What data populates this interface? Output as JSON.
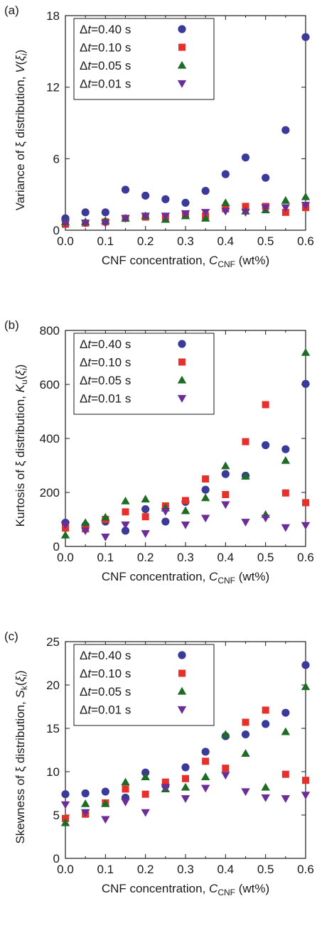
{
  "colors": {
    "dt_040": "#3a3a9a",
    "dt_010": "#e8302a",
    "dt_005": "#1d6b24",
    "dt_001": "#6b2d96"
  },
  "markers": {
    "dt_040": "circle",
    "dt_010": "square",
    "dt_005": "triangle-up",
    "dt_001": "triangle-down"
  },
  "chart_data": [
    {
      "type": "scatter",
      "panel_label": "(a)",
      "xlabel": "CNF concentration, C_CNF (wt%)",
      "xlabel_parts": {
        "pre": "CNF concentration, ",
        "sym": "C",
        "sub": "CNF",
        "post": " (wt%)"
      },
      "ylabel": "Variance of ξ distribution, V(ξi)",
      "ylabel_parts": {
        "pre": "Variance of ξ distribution, ",
        "sym": "V",
        "open": "(",
        "xi": "ξ",
        "sub": "i",
        "close": ")"
      },
      "xlim": [
        0,
        0.6
      ],
      "ylim": [
        0,
        18
      ],
      "xticks": [
        "0.0",
        "0.1",
        "0.2",
        "0.3",
        "0.4",
        "0.5",
        "0.6"
      ],
      "yticks": [
        "0",
        "6",
        "12",
        "18"
      ],
      "x": [
        0.0,
        0.05,
        0.1,
        0.15,
        0.2,
        0.25,
        0.3,
        0.35,
        0.4,
        0.45,
        0.5,
        0.55,
        0.6
      ],
      "series": [
        {
          "name": "Δt=0.40 s",
          "key": "dt_040",
          "values": [
            1.0,
            1.5,
            1.5,
            3.4,
            2.9,
            2.6,
            2.3,
            3.3,
            4.7,
            6.1,
            4.4,
            8.4,
            16.2
          ]
        },
        {
          "name": "Δt=0.10 s",
          "key": "dt_010",
          "values": [
            0.5,
            0.6,
            0.7,
            1.0,
            1.1,
            1.1,
            1.3,
            1.2,
            1.8,
            2.0,
            2.0,
            1.5,
            1.9
          ]
        },
        {
          "name": "Δt=0.05 s",
          "key": "dt_005",
          "values": [
            0.7,
            0.7,
            0.8,
            1.0,
            1.2,
            0.9,
            1.2,
            1.0,
            2.3,
            1.6,
            1.7,
            2.5,
            2.8
          ]
        },
        {
          "name": "Δt=0.01 s",
          "key": "dt_001",
          "values": [
            0.6,
            0.6,
            0.6,
            1.0,
            1.2,
            1.2,
            1.4,
            1.5,
            1.6,
            1.5,
            1.9,
            1.9,
            2.1
          ]
        }
      ]
    },
    {
      "type": "scatter",
      "panel_label": "(b)",
      "xlabel": "CNF concentration, C_CNF (wt%)",
      "xlabel_parts": {
        "pre": "CNF concentration, ",
        "sym": "C",
        "sub": "CNF",
        "post": " (wt%)"
      },
      "ylabel": "Kurtosis of ξ distribution, Ku(ξi)",
      "ylabel_parts": {
        "pre": "Kurtosis of ξ distribution, ",
        "sym": "K",
        "symsub": "u",
        "open": "(",
        "xi": "ξ",
        "sub": "i",
        "close": ")"
      },
      "xlim": [
        0,
        0.6
      ],
      "ylim": [
        0,
        800
      ],
      "xticks": [
        "0.0",
        "0.1",
        "0.2",
        "0.3",
        "0.4",
        "0.5",
        "0.6"
      ],
      "yticks": [
        "0",
        "200",
        "400",
        "600",
        "800"
      ],
      "x": [
        0.0,
        0.05,
        0.1,
        0.15,
        0.2,
        0.25,
        0.3,
        0.35,
        0.4,
        0.45,
        0.5,
        0.55,
        0.6
      ],
      "series": [
        {
          "name": "Δt=0.40 s",
          "key": "dt_040",
          "values": [
            88,
            78,
            92,
            58,
            138,
            92,
            165,
            210,
            268,
            262,
            375,
            360,
            602
          ]
        },
        {
          "name": "Δt=0.10 s",
          "key": "dt_010",
          "values": [
            68,
            65,
            100,
            128,
            110,
            150,
            170,
            250,
            192,
            388,
            525,
            198,
            162
          ]
        },
        {
          "name": "Δt=0.05 s",
          "key": "dt_005",
          "values": [
            42,
            88,
            108,
            168,
            175,
            142,
            132,
            180,
            298,
            260,
            118,
            318,
            718
          ]
        },
        {
          "name": "Δt=0.01 s",
          "key": "dt_001",
          "values": [
            80,
            58,
            35,
            80,
            48,
            130,
            80,
            105,
            155,
            90,
            105,
            70,
            78
          ]
        }
      ]
    },
    {
      "type": "scatter",
      "panel_label": "(c)",
      "xlabel": "CNF concentration, C_CNF (wt%)",
      "xlabel_parts": {
        "pre": "CNF concentration, ",
        "sym": "C",
        "sub": "CNF",
        "post": " (wt%)"
      },
      "ylabel": "Skewness of ξ distribution, Sk(ξi)",
      "ylabel_parts": {
        "pre": "Skewness of ξ distribution, ",
        "sym": "S",
        "symsub": "k",
        "open": "(",
        "xi": "ξ",
        "sub": "i",
        "close": ")"
      },
      "xlim": [
        0,
        0.6
      ],
      "ylim": [
        0,
        25
      ],
      "xticks": [
        "0.0",
        "0.1",
        "0.2",
        "0.3",
        "0.4",
        "0.5",
        "0.6"
      ],
      "yticks": [
        "0",
        "5",
        "10",
        "15",
        "20",
        "25"
      ],
      "x": [
        0.0,
        0.05,
        0.1,
        0.15,
        0.2,
        0.25,
        0.3,
        0.35,
        0.4,
        0.45,
        0.5,
        0.55,
        0.6
      ],
      "series": [
        {
          "name": "Δt=0.40 s",
          "key": "dt_040",
          "values": [
            7.4,
            7.5,
            7.7,
            7.0,
            9.9,
            8.4,
            10.5,
            12.3,
            14.1,
            14.3,
            15.5,
            16.8,
            22.3
          ]
        },
        {
          "name": "Δt=0.10 s",
          "key": "dt_010",
          "values": [
            4.6,
            5.1,
            6.4,
            8.0,
            7.4,
            8.8,
            9.2,
            11.2,
            10.4,
            15.7,
            17.1,
            9.7,
            9.0
          ]
        },
        {
          "name": "Δt=0.05 s",
          "key": "dt_005",
          "values": [
            4.1,
            6.3,
            6.3,
            8.8,
            9.4,
            8.0,
            8.2,
            9.4,
            14.3,
            12.1,
            8.2,
            14.6,
            19.8
          ]
        },
        {
          "name": "Δt=0.01 s",
          "key": "dt_001",
          "values": [
            6.2,
            5.3,
            4.5,
            6.5,
            5.3,
            8.2,
            6.9,
            8.1,
            9.6,
            7.7,
            7.0,
            6.9,
            7.3
          ]
        }
      ]
    }
  ]
}
